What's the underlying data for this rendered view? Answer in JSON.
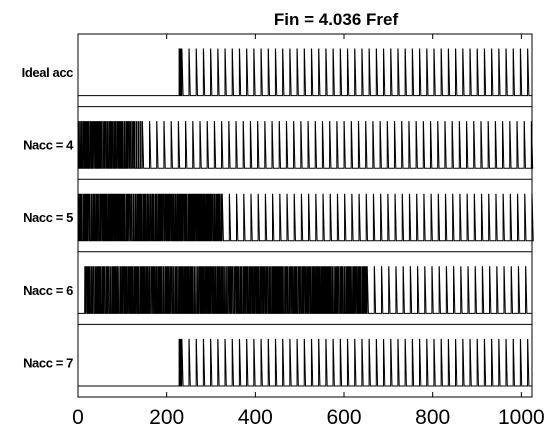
{
  "chart_data": {
    "type": "line",
    "title": "Fin = 4.036 Fref",
    "xlabel": "",
    "ylabel": "",
    "xlim": [
      0,
      1024
    ],
    "xticks": [
      0,
      200,
      400,
      600,
      800,
      1000
    ],
    "grid": false,
    "legend": "none",
    "line_color": "#000000",
    "series": [
      {
        "name": "Ideal acc",
        "regions": [
          {
            "start": 228,
            "end": 234,
            "mode": "burst",
            "period": 2
          },
          {
            "start": 234,
            "end": 1024,
            "mode": "periodic",
            "period": 16.25,
            "pulse_width": 3
          }
        ]
      },
      {
        "name": "Nacc = 4",
        "regions": [
          {
            "start": 0,
            "end": 128,
            "mode": "dense",
            "period": 3
          },
          {
            "start": 128,
            "end": 145,
            "mode": "burst",
            "period": 4
          },
          {
            "start": 145,
            "end": 1024,
            "mode": "periodic",
            "period": 16.25,
            "pulse_width": 3
          }
        ]
      },
      {
        "name": "Nacc =  5",
        "regions": [
          {
            "start": 0,
            "end": 325,
            "mode": "dense",
            "period": 2.5
          },
          {
            "start": 325,
            "end": 1024,
            "mode": "periodic",
            "period": 16.25,
            "pulse_width": 3
          }
        ]
      },
      {
        "name": "Nacc = 6",
        "regions": [
          {
            "start": 15,
            "end": 640,
            "mode": "dense",
            "period": 3
          },
          {
            "start": 640,
            "end": 652,
            "mode": "burst",
            "period": 3
          },
          {
            "start": 652,
            "end": 1024,
            "mode": "periodic",
            "period": 16.25,
            "pulse_width": 3
          }
        ]
      },
      {
        "name": "Nacc = 7",
        "regions": [
          {
            "start": 228,
            "end": 234,
            "mode": "burst",
            "period": 2
          },
          {
            "start": 234,
            "end": 1024,
            "mode": "periodic",
            "period": 16.25,
            "pulse_width": 3
          }
        ]
      }
    ]
  }
}
